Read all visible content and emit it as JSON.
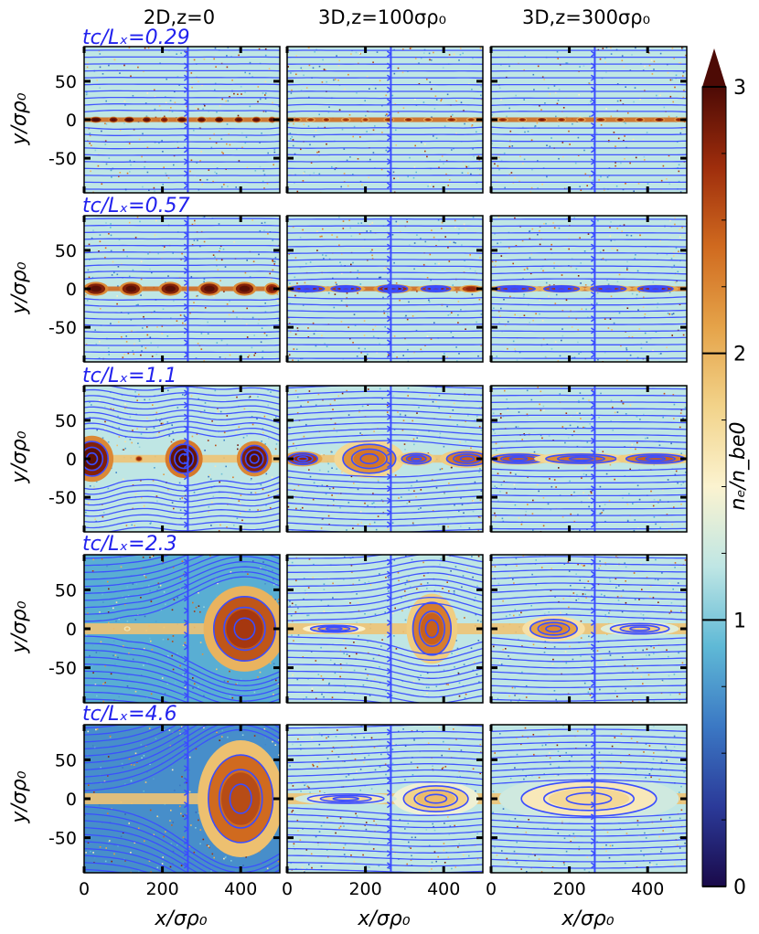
{
  "chart_data": {
    "type": "heatmap",
    "column_titles": [
      "2D,z=0",
      "3D,z=100σρ₀",
      "3D,z=300σρ₀"
    ],
    "row_labels": [
      "tc/Lₓ=0.29",
      "tc/Lₓ=0.57",
      "tc/Lₓ=1.1",
      "tc/Lₓ=2.3",
      "tc/Lₓ=4.6"
    ],
    "time_values": [
      0.29,
      0.57,
      1.1,
      2.3,
      4.6
    ],
    "xlabel": "x/σρ₀",
    "ylabel": "y/σρ₀",
    "xlim": [
      0,
      500
    ],
    "ylim": [
      -95,
      95
    ],
    "x_ticks": [
      0,
      200,
      400
    ],
    "y_ticks": [
      50,
      0,
      -50
    ],
    "colorbar": {
      "label": "nₑ/n_be0",
      "range": [
        0,
        3
      ],
      "ticks": [
        0,
        1,
        2,
        3
      ],
      "extend": "max",
      "colormap": [
        "#1a0a4a",
        "#2b3a99",
        "#3b78c4",
        "#5fb9d6",
        "#bfe6e4",
        "#fbf3d0",
        "#f2d38a",
        "#e5a349",
        "#d06a1f",
        "#9e2d0c",
        "#4d0a05"
      ]
    },
    "field_line_color": "#3b4dff",
    "islands": [
      [
        [
          {
            "x": 30,
            "w": 18,
            "h": 4,
            "d": 2.9
          },
          {
            "x": 75,
            "w": 14,
            "h": 4,
            "d": 2.8
          },
          {
            "x": 115,
            "w": 16,
            "h": 4,
            "d": 2.9
          },
          {
            "x": 160,
            "w": 14,
            "h": 4,
            "d": 2.8
          },
          {
            "x": 205,
            "w": 12,
            "h": 4,
            "d": 2.7
          },
          {
            "x": 250,
            "w": 16,
            "h": 4,
            "d": 2.8
          },
          {
            "x": 300,
            "w": 14,
            "h": 4,
            "d": 2.8
          },
          {
            "x": 345,
            "w": 14,
            "h": 4,
            "d": 2.9
          },
          {
            "x": 395,
            "w": 14,
            "h": 4,
            "d": 2.8
          },
          {
            "x": 440,
            "w": 14,
            "h": 4,
            "d": 2.8
          },
          {
            "x": 480,
            "w": 12,
            "h": 4,
            "d": 2.8
          }
        ],
        [
          {
            "x": 25,
            "w": 12,
            "h": 3,
            "d": 2.6
          },
          {
            "x": 60,
            "w": 12,
            "h": 3,
            "d": 2.5
          },
          {
            "x": 100,
            "w": 10,
            "h": 3,
            "d": 2.6
          },
          {
            "x": 150,
            "w": 12,
            "h": 3,
            "d": 2.5
          },
          {
            "x": 200,
            "w": 10,
            "h": 3,
            "d": 2.5
          },
          {
            "x": 260,
            "w": 14,
            "h": 3,
            "d": 2.6
          },
          {
            "x": 310,
            "w": 12,
            "h": 3,
            "d": 2.6
          },
          {
            "x": 360,
            "w": 12,
            "h": 3,
            "d": 2.5
          },
          {
            "x": 420,
            "w": 14,
            "h": 3,
            "d": 2.6
          },
          {
            "x": 470,
            "w": 12,
            "h": 3,
            "d": 2.5
          }
        ],
        [
          {
            "x": 30,
            "w": 14,
            "h": 3,
            "d": 2.6
          },
          {
            "x": 80,
            "w": 12,
            "h": 3,
            "d": 2.6
          },
          {
            "x": 130,
            "w": 14,
            "h": 3,
            "d": 2.7
          },
          {
            "x": 180,
            "w": 12,
            "h": 3,
            "d": 2.6
          },
          {
            "x": 230,
            "w": 12,
            "h": 3,
            "d": 2.5
          },
          {
            "x": 280,
            "w": 14,
            "h": 3,
            "d": 2.6
          },
          {
            "x": 330,
            "w": 12,
            "h": 3,
            "d": 2.6
          },
          {
            "x": 380,
            "w": 12,
            "h": 3,
            "d": 2.6
          },
          {
            "x": 430,
            "w": 14,
            "h": 3,
            "d": 2.7
          },
          {
            "x": 480,
            "w": 12,
            "h": 3,
            "d": 2.6
          }
        ]
      ],
      [
        [
          {
            "x": 30,
            "w": 32,
            "h": 9,
            "d": 2.8
          },
          {
            "x": 120,
            "w": 30,
            "h": 9,
            "d": 2.8
          },
          {
            "x": 220,
            "w": 30,
            "h": 9,
            "d": 2.8
          },
          {
            "x": 320,
            "w": 30,
            "h": 9,
            "d": 2.8
          },
          {
            "x": 410,
            "w": 30,
            "h": 9,
            "d": 2.8
          },
          {
            "x": 480,
            "w": 20,
            "h": 8,
            "d": 2.7
          }
        ],
        [
          {
            "x": 50,
            "w": 60,
            "h": 5,
            "d": 2.6
          },
          {
            "x": 150,
            "w": 50,
            "h": 5,
            "d": 2.6
          },
          {
            "x": 270,
            "w": 50,
            "h": 6,
            "d": 2.7
          },
          {
            "x": 380,
            "w": 50,
            "h": 5,
            "d": 2.6
          },
          {
            "x": 470,
            "w": 30,
            "h": 5,
            "d": 2.6
          }
        ],
        [
          {
            "x": 60,
            "w": 70,
            "h": 5,
            "d": 2.5
          },
          {
            "x": 180,
            "w": 60,
            "h": 5,
            "d": 2.5
          },
          {
            "x": 300,
            "w": 60,
            "h": 5,
            "d": 2.5
          },
          {
            "x": 420,
            "w": 60,
            "h": 5,
            "d": 2.6
          }
        ]
      ],
      [
        [
          {
            "x": 20,
            "w": 55,
            "h": 30,
            "d": 2.8
          },
          {
            "x": 140,
            "w": 10,
            "h": 4,
            "d": 2.6
          },
          {
            "x": 255,
            "w": 48,
            "h": 25,
            "d": 2.9
          },
          {
            "x": 435,
            "w": 45,
            "h": 23,
            "d": 2.8
          }
        ],
        [
          {
            "x": 40,
            "w": 50,
            "h": 10,
            "d": 2.6
          },
          {
            "x": 210,
            "w": 90,
            "h": 25,
            "d": 2.2
          },
          {
            "x": 330,
            "w": 50,
            "h": 9,
            "d": 2.3
          },
          {
            "x": 460,
            "w": 70,
            "h": 12,
            "d": 2.3
          }
        ],
        [
          {
            "x": 70,
            "w": 90,
            "h": 8,
            "d": 2.3
          },
          {
            "x": 230,
            "w": 120,
            "h": 8,
            "d": 2.2
          },
          {
            "x": 420,
            "w": 100,
            "h": 8,
            "d": 2.3
          }
        ]
      ],
      [
        [
          {
            "x": 410,
            "w": 105,
            "h": 55,
            "d": 2.5
          },
          {
            "x": 110,
            "w": 8,
            "h": 3,
            "d": 1.8
          }
        ],
        [
          {
            "x": 370,
            "w": 65,
            "h": 45,
            "d": 2.3
          },
          {
            "x": 120,
            "w": 80,
            "h": 6,
            "d": 1.9
          }
        ],
        [
          {
            "x": 160,
            "w": 80,
            "h": 16,
            "d": 2.1
          },
          {
            "x": 380,
            "w": 100,
            "h": 9,
            "d": 1.7
          }
        ]
      ],
      [
        [
          {
            "x": 400,
            "w": 110,
            "h": 75,
            "d": 2.4
          }
        ],
        [
          {
            "x": 380,
            "w": 110,
            "h": 22,
            "d": 1.8
          },
          {
            "x": 150,
            "w": 130,
            "h": 8,
            "d": 1.6
          }
        ],
        [
          {
            "x": 250,
            "w": 230,
            "h": 30,
            "d": 1.6
          }
        ]
      ]
    ]
  }
}
